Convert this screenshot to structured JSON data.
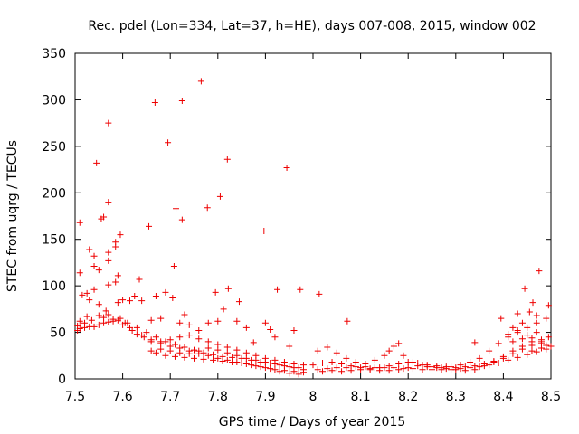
{
  "chart_data": {
    "type": "scatter",
    "title": "Rec. pdel (Lon=334, Lat=37, h=HE), days 007-008, 2015, window 002",
    "xlabel": "GPS time / Days of year 2015",
    "ylabel": "STEC from uqrg / TECUs",
    "xlim": [
      7.5,
      8.5
    ],
    "ylim": [
      0,
      350
    ],
    "x_ticks": [
      7.5,
      7.6,
      7.7,
      7.8,
      7.9,
      8.0,
      8.1,
      8.2,
      8.3,
      8.4,
      8.5
    ],
    "x_tick_labels": [
      "7.5",
      "7.6",
      "7.7",
      "7.8",
      "7.9",
      "8",
      "8.1",
      "8.2",
      "8.3",
      "8.4",
      "8.5"
    ],
    "y_ticks": [
      0,
      50,
      100,
      150,
      200,
      250,
      300,
      350
    ],
    "y_tick_labels": [
      "0",
      "50",
      "100",
      "150",
      "200",
      "250",
      "300",
      "350"
    ],
    "grid": false,
    "marker": "+",
    "marker_color": "#ee0000",
    "points": [
      [
        7.51,
        168
      ],
      [
        7.53,
        139
      ],
      [
        7.54,
        132
      ],
      [
        7.54,
        121
      ],
      [
        7.55,
        117
      ],
      [
        7.545,
        232
      ],
      [
        7.57,
        275
      ],
      [
        7.57,
        190
      ],
      [
        7.56,
        174
      ],
      [
        7.555,
        172
      ],
      [
        7.57,
        136
      ],
      [
        7.57,
        127
      ],
      [
        7.57,
        101
      ],
      [
        7.585,
        147
      ],
      [
        7.585,
        142
      ],
      [
        7.595,
        155
      ],
      [
        7.59,
        111
      ],
      [
        7.585,
        104
      ],
      [
        7.635,
        107
      ],
      [
        7.655,
        164
      ],
      [
        7.668,
        297
      ],
      [
        7.695,
        254
      ],
      [
        7.712,
        183
      ],
      [
        7.725,
        171
      ],
      [
        7.725,
        299
      ],
      [
        7.765,
        320
      ],
      [
        7.708,
        121
      ],
      [
        7.778,
        184
      ],
      [
        7.805,
        196
      ],
      [
        7.82,
        236
      ],
      [
        7.845,
        83
      ],
      [
        7.795,
        93
      ],
      [
        7.812,
        75
      ],
      [
        7.822,
        97
      ],
      [
        7.897,
        159
      ],
      [
        7.925,
        96
      ],
      [
        7.945,
        227
      ],
      [
        7.973,
        96
      ],
      [
        8.013,
        91
      ],
      [
        8.072,
        62
      ],
      [
        8.34,
        39
      ],
      [
        8.475,
        116
      ],
      [
        8.495,
        79
      ],
      [
        8.445,
        97
      ],
      [
        8.462,
        82
      ],
      [
        7.51,
        114
      ],
      [
        7.515,
        90
      ],
      [
        7.525,
        92
      ],
      [
        7.53,
        85
      ],
      [
        7.54,
        96
      ],
      [
        7.55,
        80
      ],
      [
        7.565,
        73
      ],
      [
        7.59,
        82
      ],
      [
        7.6,
        85
      ],
      [
        7.615,
        84
      ],
      [
        7.625,
        89
      ],
      [
        7.64,
        84
      ],
      [
        7.67,
        89
      ],
      [
        7.69,
        93
      ],
      [
        7.705,
        87
      ],
      [
        7.66,
        63
      ],
      [
        7.68,
        65
      ],
      [
        7.72,
        60
      ],
      [
        7.73,
        69
      ],
      [
        7.74,
        58
      ],
      [
        7.76,
        52
      ],
      [
        7.78,
        60
      ],
      [
        7.8,
        62
      ],
      [
        7.84,
        62
      ],
      [
        7.86,
        55
      ],
      [
        7.9,
        60
      ],
      [
        7.91,
        53
      ],
      [
        7.92,
        45
      ],
      [
        7.95,
        35
      ],
      [
        7.96,
        52
      ],
      [
        7.875,
        39
      ],
      [
        7.505,
        57
      ],
      [
        7.51,
        62
      ],
      [
        7.52,
        60
      ],
      [
        7.525,
        67
      ],
      [
        7.535,
        63
      ],
      [
        7.55,
        68
      ],
      [
        7.56,
        66
      ],
      [
        7.57,
        69
      ],
      [
        7.58,
        64
      ],
      [
        7.595,
        65
      ],
      [
        7.605,
        60
      ],
      [
        7.615,
        55
      ],
      [
        7.63,
        48
      ],
      [
        7.645,
        45
      ],
      [
        7.66,
        40
      ],
      [
        7.68,
        38
      ],
      [
        7.7,
        35
      ],
      [
        7.72,
        33
      ],
      [
        7.74,
        30
      ],
      [
        7.76,
        27
      ],
      [
        7.78,
        25
      ],
      [
        7.8,
        22
      ],
      [
        7.82,
        20
      ],
      [
        7.84,
        18
      ],
      [
        7.86,
        16
      ],
      [
        7.88,
        14
      ],
      [
        7.9,
        12
      ],
      [
        7.92,
        10
      ],
      [
        7.94,
        9
      ],
      [
        7.96,
        8
      ],
      [
        7.98,
        7
      ],
      [
        7.505,
        52
      ],
      [
        7.52,
        55
      ],
      [
        7.54,
        56
      ],
      [
        7.56,
        60
      ],
      [
        7.58,
        62
      ],
      [
        7.6,
        58
      ],
      [
        7.62,
        52
      ],
      [
        7.64,
        47
      ],
      [
        7.66,
        42
      ],
      [
        7.68,
        40
      ],
      [
        7.7,
        42
      ],
      [
        7.72,
        45
      ],
      [
        7.74,
        47
      ],
      [
        7.76,
        43
      ],
      [
        7.78,
        40
      ],
      [
        7.8,
        37
      ],
      [
        7.82,
        34
      ],
      [
        7.84,
        31
      ],
      [
        7.86,
        28
      ],
      [
        7.88,
        25
      ],
      [
        7.9,
        22
      ],
      [
        7.92,
        20
      ],
      [
        7.94,
        18
      ],
      [
        7.96,
        16
      ],
      [
        7.98,
        15
      ],
      [
        7.51,
        54
      ],
      [
        7.53,
        56
      ],
      [
        7.55,
        58
      ],
      [
        7.57,
        61
      ],
      [
        7.59,
        63
      ],
      [
        7.61,
        60
      ],
      [
        7.63,
        55
      ],
      [
        7.65,
        50
      ],
      [
        7.67,
        45
      ],
      [
        7.69,
        40
      ],
      [
        7.71,
        37
      ],
      [
        7.73,
        34
      ],
      [
        7.75,
        31
      ],
      [
        7.77,
        28
      ],
      [
        7.79,
        26
      ],
      [
        7.81,
        24
      ],
      [
        7.83,
        23
      ],
      [
        7.85,
        22
      ],
      [
        7.87,
        20
      ],
      [
        7.89,
        18
      ],
      [
        7.91,
        17
      ],
      [
        7.93,
        15
      ],
      [
        7.95,
        13
      ],
      [
        7.97,
        12
      ],
      [
        7.67,
        28
      ],
      [
        7.69,
        25
      ],
      [
        7.71,
        24
      ],
      [
        7.73,
        23
      ],
      [
        7.75,
        22
      ],
      [
        7.77,
        21
      ],
      [
        7.79,
        20
      ],
      [
        7.81,
        19
      ],
      [
        7.83,
        18
      ],
      [
        7.85,
        17
      ],
      [
        7.87,
        15
      ],
      [
        7.89,
        13
      ],
      [
        7.91,
        11
      ],
      [
        7.93,
        8
      ],
      [
        7.95,
        6
      ],
      [
        7.97,
        5
      ],
      [
        7.66,
        30
      ],
      [
        7.68,
        32
      ],
      [
        7.7,
        30
      ],
      [
        7.72,
        28
      ],
      [
        7.74,
        27
      ],
      [
        7.76,
        30
      ],
      [
        7.78,
        33
      ],
      [
        7.8,
        31
      ],
      [
        7.82,
        28
      ],
      [
        7.84,
        25
      ],
      [
        7.86,
        22
      ],
      [
        7.88,
        20
      ],
      [
        7.9,
        18
      ],
      [
        7.92,
        16
      ],
      [
        7.94,
        14
      ],
      [
        7.96,
        12
      ],
      [
        7.98,
        10
      ],
      [
        8.01,
        10
      ],
      [
        8.03,
        11
      ],
      [
        8.05,
        12
      ],
      [
        8.07,
        12
      ],
      [
        8.09,
        13
      ],
      [
        8.11,
        13
      ],
      [
        8.13,
        12
      ],
      [
        8.15,
        12
      ],
      [
        8.17,
        12
      ],
      [
        8.19,
        11
      ],
      [
        8.21,
        11
      ],
      [
        8.23,
        10
      ],
      [
        8.25,
        10
      ],
      [
        8.27,
        10
      ],
      [
        8.29,
        10
      ],
      [
        8.31,
        11
      ],
      [
        8.33,
        12
      ],
      [
        8.35,
        13
      ],
      [
        8.37,
        15
      ],
      [
        8.39,
        17
      ],
      [
        8.41,
        20
      ],
      [
        8.43,
        23
      ],
      [
        8.45,
        26
      ],
      [
        8.47,
        29
      ],
      [
        8.49,
        32
      ],
      [
        8.0,
        15
      ],
      [
        8.02,
        17
      ],
      [
        8.04,
        18
      ],
      [
        8.06,
        16
      ],
      [
        8.08,
        14
      ],
      [
        8.1,
        12
      ],
      [
        8.12,
        10
      ],
      [
        8.14,
        9
      ],
      [
        8.16,
        9
      ],
      [
        8.18,
        10
      ],
      [
        8.2,
        12
      ],
      [
        8.22,
        14
      ],
      [
        8.24,
        13
      ],
      [
        8.26,
        12
      ],
      [
        8.28,
        11
      ],
      [
        8.3,
        10
      ],
      [
        8.32,
        9
      ],
      [
        8.34,
        10
      ],
      [
        8.36,
        14
      ],
      [
        8.38,
        18
      ],
      [
        8.4,
        22
      ],
      [
        8.42,
        27
      ],
      [
        8.44,
        32
      ],
      [
        8.46,
        36
      ],
      [
        8.48,
        40
      ],
      [
        8.495,
        45
      ],
      [
        8.01,
        30
      ],
      [
        8.03,
        34
      ],
      [
        8.05,
        28
      ],
      [
        8.07,
        22
      ],
      [
        8.09,
        18
      ],
      [
        8.11,
        16
      ],
      [
        8.13,
        20
      ],
      [
        8.15,
        25
      ],
      [
        8.16,
        30
      ],
      [
        8.17,
        35
      ],
      [
        8.18,
        38
      ],
      [
        8.19,
        25
      ],
      [
        8.21,
        18
      ],
      [
        8.23,
        15
      ],
      [
        8.25,
        13
      ],
      [
        8.27,
        12
      ],
      [
        8.29,
        13
      ],
      [
        8.31,
        15
      ],
      [
        8.33,
        18
      ],
      [
        8.35,
        22
      ],
      [
        8.37,
        30
      ],
      [
        8.39,
        38
      ],
      [
        8.41,
        45
      ],
      [
        8.43,
        50
      ],
      [
        8.45,
        55
      ],
      [
        8.47,
        60
      ],
      [
        8.49,
        65
      ],
      [
        8.02,
        8
      ],
      [
        8.04,
        9
      ],
      [
        8.06,
        8
      ],
      [
        8.08,
        9
      ],
      [
        8.1,
        10
      ],
      [
        8.12,
        11
      ],
      [
        8.14,
        12
      ],
      [
        8.16,
        14
      ],
      [
        8.18,
        16
      ],
      [
        8.2,
        18
      ],
      [
        8.22,
        17
      ],
      [
        8.24,
        15
      ],
      [
        8.26,
        14
      ],
      [
        8.28,
        13
      ],
      [
        8.3,
        12
      ],
      [
        8.32,
        13
      ],
      [
        8.34,
        14
      ],
      [
        8.36,
        16
      ],
      [
        8.38,
        19
      ],
      [
        8.4,
        24
      ],
      [
        8.42,
        30
      ],
      [
        8.44,
        35
      ],
      [
        8.46,
        40
      ],
      [
        8.48,
        42
      ],
      [
        8.41,
        48
      ],
      [
        8.42,
        55
      ],
      [
        8.43,
        52
      ],
      [
        8.44,
        60
      ],
      [
        8.45,
        47
      ],
      [
        8.46,
        44
      ],
      [
        8.47,
        50
      ],
      [
        8.48,
        38
      ],
      [
        8.49,
        36
      ],
      [
        8.42,
        40
      ],
      [
        8.44,
        43
      ],
      [
        8.46,
        30
      ],
      [
        8.48,
        33
      ],
      [
        8.5,
        35
      ],
      [
        8.395,
        65
      ],
      [
        8.43,
        70
      ],
      [
        8.455,
        72
      ],
      [
        8.47,
        68
      ]
    ]
  }
}
